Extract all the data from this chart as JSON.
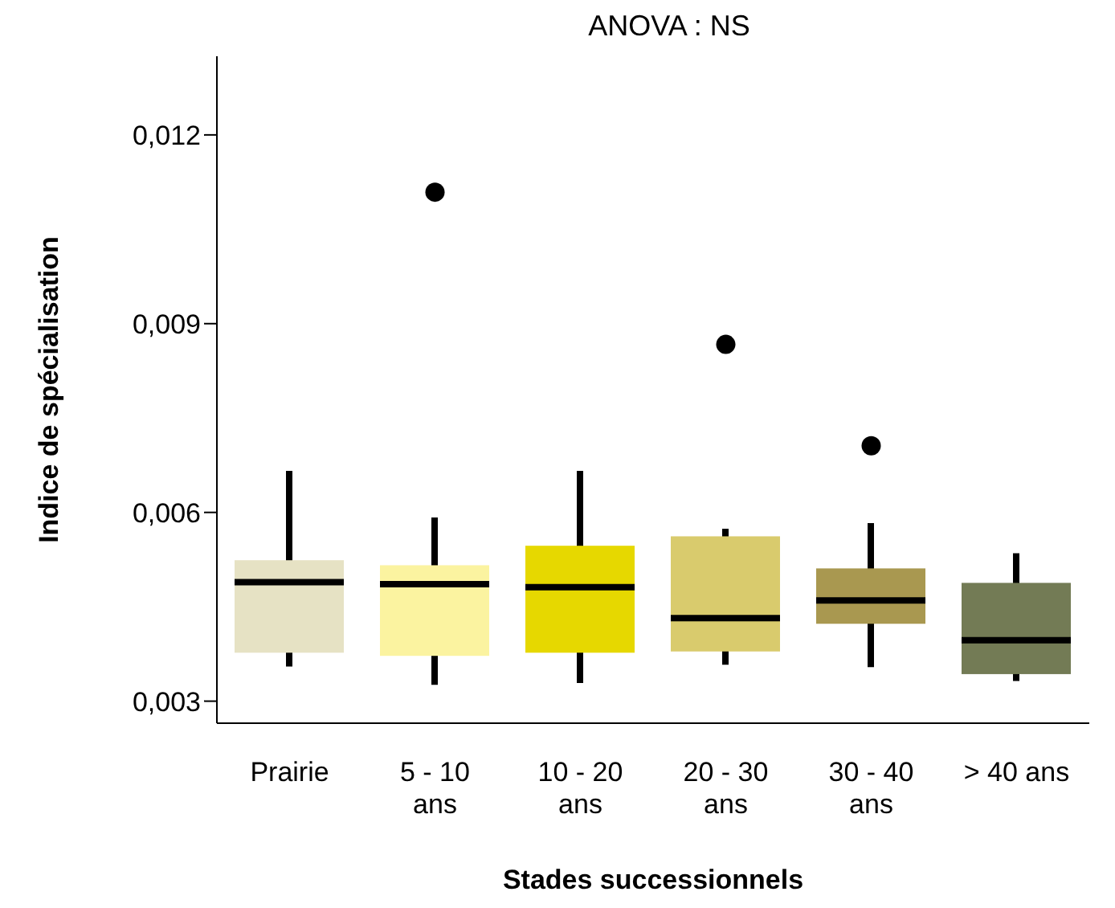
{
  "chart_data": {
    "type": "box",
    "title": "ANOVA : NS",
    "xlabel": "Stades successionnels",
    "ylabel": "Indice de spécialisation",
    "categories": [
      "Prairie",
      "5 - 10 ans",
      "10 - 20 ans",
      "20 - 30 ans",
      "30 - 40 ans",
      "> 40 ans"
    ],
    "colors": [
      "#e6e2c4",
      "#fbf3a0",
      "#e6d800",
      "#d9cb6d",
      "#a99850",
      "#737b55"
    ],
    "boxes": [
      {
        "low": 0.00355,
        "q1": 0.00377,
        "median": 0.00489,
        "q3": 0.00524,
        "high": 0.00666
      },
      {
        "low": 0.00326,
        "q1": 0.00372,
        "median": 0.00486,
        "q3": 0.00516,
        "high": 0.00592,
        "outliers": [
          0.01109
        ]
      },
      {
        "low": 0.00329,
        "q1": 0.00377,
        "median": 0.00481,
        "q3": 0.00547,
        "high": 0.00666
      },
      {
        "low": 0.00358,
        "q1": 0.00379,
        "median": 0.00432,
        "q3": 0.00562,
        "high": 0.00574,
        "outliers": [
          0.00867
        ]
      },
      {
        "low": 0.00354,
        "q1": 0.00423,
        "median": 0.0046,
        "q3": 0.00511,
        "high": 0.00583,
        "outliers": [
          0.00706
        ]
      },
      {
        "low": 0.00332,
        "q1": 0.00343,
        "median": 0.00397,
        "q3": 0.00488,
        "high": 0.00535
      }
    ],
    "ylim": [
      0.00265,
      0.01325
    ],
    "yticks": [
      {
        "value": 0.003,
        "label": "0,003"
      },
      {
        "value": 0.006,
        "label": "0,006"
      },
      {
        "value": 0.009,
        "label": "0,009"
      },
      {
        "value": 0.012,
        "label": "0,012"
      }
    ],
    "grid": false,
    "legend": false
  }
}
